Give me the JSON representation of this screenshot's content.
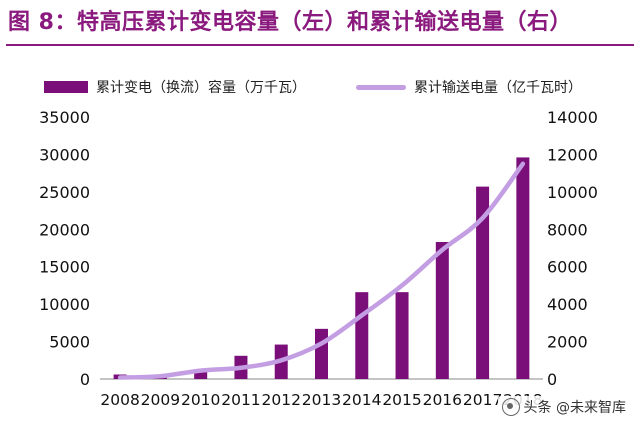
{
  "title": "图 8：特高压累计变电容量（左）和累计输送电量（右）",
  "chart_data": {
    "type": "bar",
    "categories": [
      "2008",
      "2009",
      "2010",
      "2011",
      "2012",
      "2013",
      "2014",
      "2015",
      "2016",
      "2017",
      "2018"
    ],
    "series": [
      {
        "name": "累计变电（换流）容量（万千瓦）",
        "type": "bar",
        "axis": "left",
        "color": "#7b0f7a",
        "values": [
          600,
          600,
          1300,
          3100,
          4600,
          6700,
          11600,
          11600,
          18300,
          25700,
          29600
        ]
      },
      {
        "name": "累计输送电量（亿千瓦时）",
        "type": "line",
        "axis": "right",
        "color": "#c39ee3",
        "values": [
          80,
          150,
          450,
          600,
          1000,
          1900,
          3400,
          5000,
          6900,
          8600,
          11500
        ]
      }
    ],
    "ylim_left": [
      0,
      35000
    ],
    "ylim_right": [
      0,
      14000
    ],
    "yticks_left": [
      "0",
      "5000",
      "10000",
      "15000",
      "20000",
      "25000",
      "30000",
      "35000"
    ],
    "yticks_right": [
      "0",
      "2000",
      "4000",
      "6000",
      "8000",
      "10000",
      "12000",
      "14000"
    ],
    "grid": false,
    "legend_position": "top"
  },
  "watermark": "头条 @未来智库"
}
